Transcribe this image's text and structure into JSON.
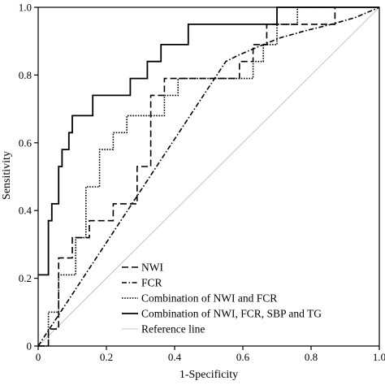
{
  "chart_data": {
    "type": "line",
    "xlabel": "1-Specificity",
    "ylabel": "Sensitivity",
    "xlim": [
      0,
      1
    ],
    "ylim": [
      0,
      1
    ],
    "xticks": [
      "0",
      "0.2",
      "0.4",
      "0.6",
      "0.8",
      "1.0"
    ],
    "yticks": [
      "0",
      "0.2",
      "0.4",
      "0.6",
      "0.8",
      "1.0"
    ],
    "grid": false,
    "legend_position": "bottom-right",
    "series": [
      {
        "name": "NWI",
        "style": "long-dash",
        "x": [
          0,
          0.03,
          0.03,
          0.06,
          0.06,
          0.1,
          0.1,
          0.15,
          0.15,
          0.22,
          0.22,
          0.29,
          0.29,
          0.33,
          0.33,
          0.37,
          0.37,
          0.41,
          0.41,
          0.52,
          0.52,
          0.59,
          0.59,
          0.63,
          0.63,
          0.67,
          0.67,
          0.75,
          0.75,
          0.87,
          0.87
        ],
        "y": [
          0,
          0,
          0.05,
          0.05,
          0.26,
          0.26,
          0.32,
          0.32,
          0.37,
          0.37,
          0.42,
          0.42,
          0.53,
          0.53,
          0.74,
          0.74,
          0.79,
          0.79,
          0.79,
          0.79,
          0.79,
          0.79,
          0.84,
          0.84,
          0.89,
          0.89,
          0.95,
          0.95,
          0.95,
          0.95,
          1.0
        ]
      },
      {
        "name": "FCR",
        "style": "dash-dot",
        "x": [
          0,
          0.55,
          0.59,
          0.66,
          0.71,
          0.78,
          0.86,
          0.93,
          1.0
        ],
        "y": [
          0,
          0.84,
          0.86,
          0.89,
          0.91,
          0.93,
          0.95,
          0.97,
          1.0
        ]
      },
      {
        "name": "Combination of NWI and FCR",
        "style": "dotted",
        "x": [
          0,
          0.03,
          0.03,
          0.06,
          0.06,
          0.11,
          0.11,
          0.14,
          0.14,
          0.18,
          0.18,
          0.22,
          0.22,
          0.26,
          0.26,
          0.33,
          0.33,
          0.37,
          0.37,
          0.41,
          0.41,
          0.52,
          0.52,
          0.59,
          0.59,
          0.63,
          0.63,
          0.66,
          0.66,
          0.7,
          0.7,
          0.76,
          0.76,
          0.87,
          0.87
        ],
        "y": [
          0,
          0,
          0.1,
          0.1,
          0.21,
          0.21,
          0.32,
          0.32,
          0.47,
          0.47,
          0.58,
          0.58,
          0.63,
          0.63,
          0.68,
          0.68,
          0.68,
          0.68,
          0.74,
          0.74,
          0.79,
          0.79,
          0.79,
          0.79,
          0.79,
          0.79,
          0.84,
          0.84,
          0.89,
          0.89,
          0.95,
          0.95,
          1.0,
          1.0,
          1.0
        ]
      },
      {
        "name": "Combination of NWI, FCR, SBP and TG",
        "style": "solid",
        "x": [
          0,
          0.03,
          0.03,
          0.04,
          0.04,
          0.05,
          0.05,
          0.06,
          0.06,
          0.07,
          0.07,
          0.08,
          0.08,
          0.09,
          0.09,
          0.1,
          0.1,
          0.12,
          0.12,
          0.16,
          0.16,
          0.22,
          0.22,
          0.27,
          0.27,
          0.32,
          0.32,
          0.36,
          0.36,
          0.44,
          0.44,
          0.5,
          0.5,
          0.57,
          0.57,
          0.7,
          0.7,
          1.0,
          1.0
        ],
        "y": [
          0.21,
          0.21,
          0.37,
          0.37,
          0.42,
          0.42,
          0.42,
          0.42,
          0.53,
          0.53,
          0.58,
          0.58,
          0.58,
          0.58,
          0.63,
          0.63,
          0.68,
          0.68,
          0.68,
          0.68,
          0.74,
          0.74,
          0.74,
          0.74,
          0.79,
          0.79,
          0.84,
          0.84,
          0.89,
          0.89,
          0.95,
          0.95,
          0.95,
          0.95,
          0.95,
          0.95,
          1.0,
          1.0,
          1.0
        ]
      },
      {
        "name": "Reference line",
        "style": "reference",
        "x": [
          0,
          1
        ],
        "y": [
          0,
          1
        ]
      }
    ]
  },
  "colors": {
    "ink": "#000000",
    "reference": "#c8c8c8"
  }
}
